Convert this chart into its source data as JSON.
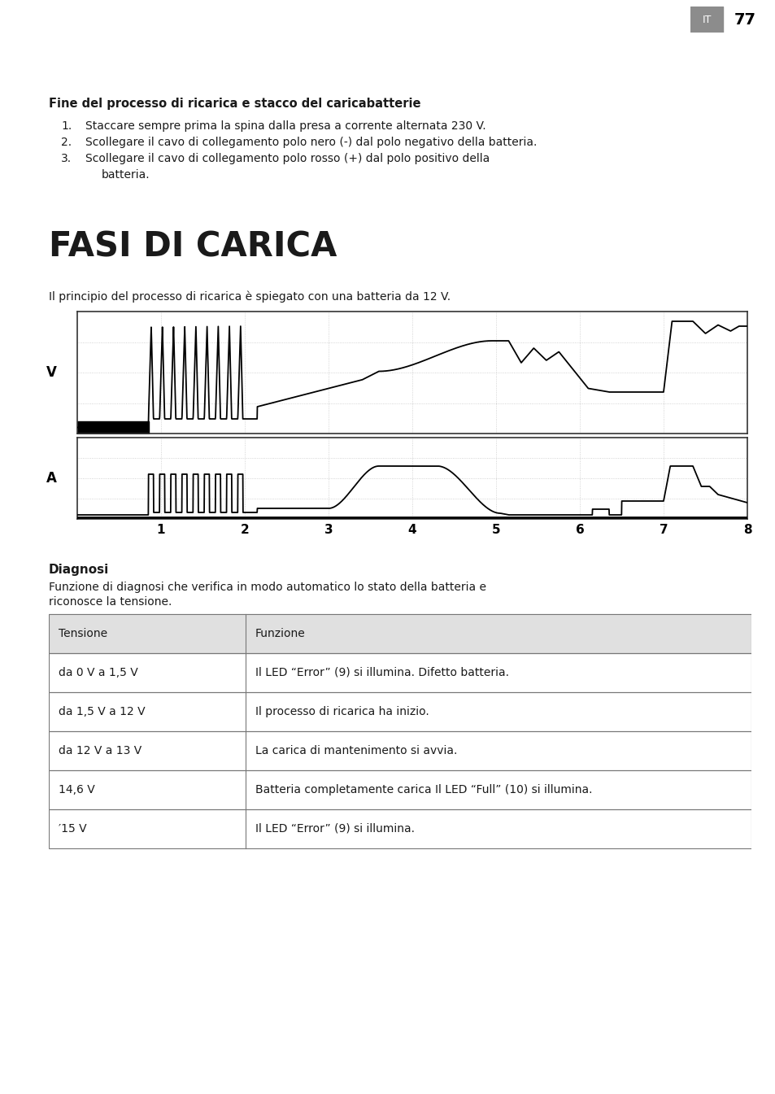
{
  "page_number": "77",
  "page_lang": "IT",
  "header_bg_color": "#8c8c8c",
  "header_text_color": "#ffffff",
  "background_color": "#ffffff",
  "text_color": "#1a1a1a",
  "section1_title": "Fine del processo di ricarica e stacco del caricabatterie",
  "item1": "Staccare sempre prima la spina dalla presa a corrente alternata 230 V.",
  "item2": "Scollegare il cavo di collegamento polo nero (-) dal polo negativo della batteria.",
  "item3a": "Scollegare il cavo di collegamento polo rosso (+) dal polo positivo della",
  "item3b": "batteria.",
  "section2_title": "FASI DI CARICA",
  "section2_subtitle": "Il principio del processo di ricarica è spiegato con una batteria da 12 V.",
  "chart_xlabel": [
    "1",
    "2",
    "3",
    "4",
    "5",
    "6",
    "7",
    "8"
  ],
  "chart_ylabel_top": "V",
  "chart_ylabel_bottom": "A",
  "diagnosi_title": "Diagnosi",
  "diagnosi_line1": "Funzione di diagnosi che verifica in modo automatico lo stato della batteria e",
  "diagnosi_line2": "riconosce la tensione.",
  "table_header": [
    "Tensione",
    "Funzione"
  ],
  "table_rows": [
    [
      "da 0 V a 1,5 V",
      "Il LED “Error” (9) si illumina. Difetto batteria."
    ],
    [
      "da 1,5 V a 12 V",
      "Il processo di ricarica ha inizio."
    ],
    [
      "da 12 V a 13 V",
      "La carica di mantenimento si avvia."
    ],
    [
      "14,6 V",
      "Batteria completamente carica Il LED “Full” (10) si illumina."
    ],
    [
      "′15 V",
      "Il LED “Error” (9) si illumina."
    ]
  ],
  "table_header_bg": "#e0e0e0",
  "grid_color": "#c8c8c8",
  "fig_width": 9.54,
  "fig_height": 13.45,
  "dpi": 100
}
